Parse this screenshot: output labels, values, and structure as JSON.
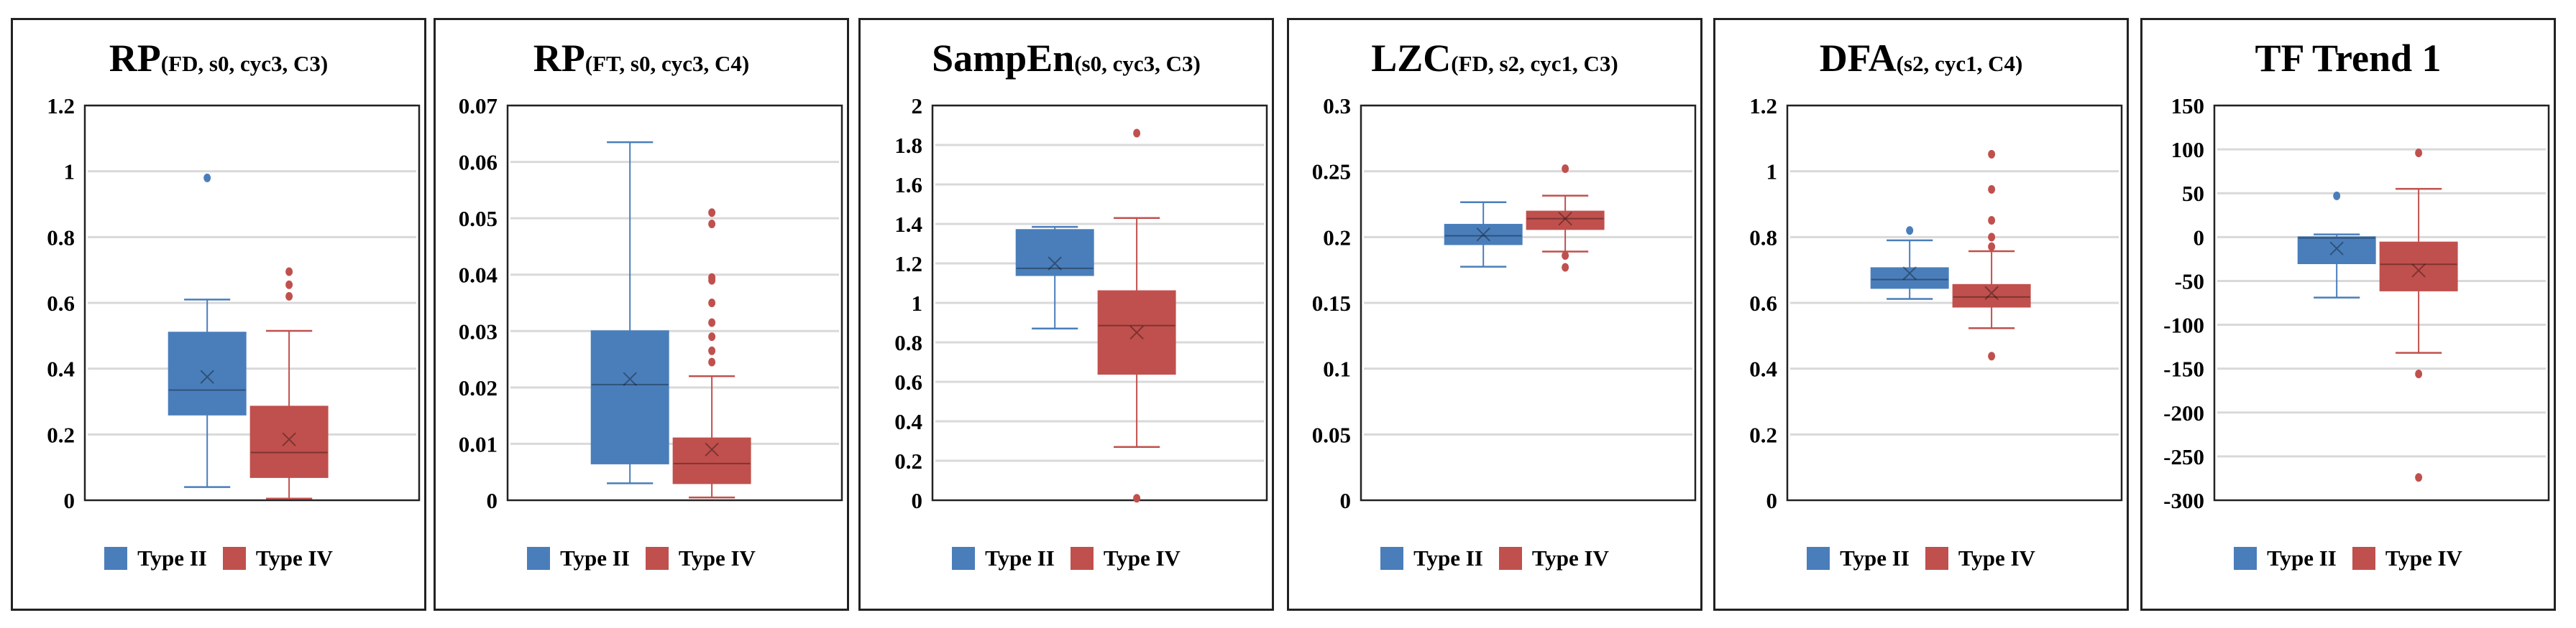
{
  "colors": {
    "type_ii": "#4a7ebb",
    "type_iv": "#c0504d",
    "grid": "#d9d9d9"
  },
  "legend": [
    "Type II",
    "Type IV"
  ],
  "chart_data": [
    {
      "type": "box",
      "title_main": "RP",
      "title_sub": "(FD, s0, cyc3, C3)",
      "ylim": [
        0,
        1.2
      ],
      "yticks": [
        "0",
        "0.2",
        "0.4",
        "0.6",
        "0.8",
        "1",
        "1.2"
      ],
      "ytick_values": [
        0,
        0.2,
        0.4,
        0.6,
        0.8,
        1,
        1.2
      ],
      "series": [
        {
          "name": "Type II",
          "min": 0.04,
          "q1": 0.26,
          "median": 0.335,
          "q3": 0.51,
          "max": 0.61,
          "mean": 0.375,
          "outliers": [
            0.98
          ]
        },
        {
          "name": "Type IV",
          "min": 0.005,
          "q1": 0.07,
          "median": 0.145,
          "q3": 0.285,
          "max": 0.515,
          "mean": 0.185,
          "outliers": [
            0.62,
            0.655,
            0.695
          ]
        }
      ]
    },
    {
      "type": "box",
      "title_main": "RP",
      "title_sub": "(FT, s0, cyc3, C4)",
      "ylim": [
        0,
        0.07
      ],
      "yticks": [
        "0",
        "0.01",
        "0.02",
        "0.03",
        "0.04",
        "0.05",
        "0.06",
        "0.07"
      ],
      "ytick_values": [
        0,
        0.01,
        0.02,
        0.03,
        0.04,
        0.05,
        0.06,
        0.07
      ],
      "series": [
        {
          "name": "Type II",
          "min": 0.003,
          "q1": 0.0065,
          "median": 0.0205,
          "q3": 0.03,
          "max": 0.0635,
          "mean": 0.0215,
          "outliers": []
        },
        {
          "name": "Type IV",
          "min": 0.0005,
          "q1": 0.003,
          "median": 0.0065,
          "q3": 0.011,
          "max": 0.022,
          "mean": 0.009,
          "outliers": [
            0.0245,
            0.0265,
            0.029,
            0.0315,
            0.035,
            0.039,
            0.0395,
            0.049,
            0.051
          ]
        }
      ]
    },
    {
      "type": "box",
      "title_main": "SampEn",
      "title_sub": "(s0, cyc3, C3)",
      "ylim": [
        0,
        2
      ],
      "yticks": [
        "0",
        "0.2",
        "0.4",
        "0.6",
        "0.8",
        "1",
        "1.2",
        "1.4",
        "1.6",
        "1.8",
        "2"
      ],
      "ytick_values": [
        0,
        0.2,
        0.4,
        0.6,
        0.8,
        1,
        1.2,
        1.4,
        1.6,
        1.8,
        2
      ],
      "series": [
        {
          "name": "Type II",
          "min": 0.87,
          "q1": 1.14,
          "median": 1.175,
          "q3": 1.37,
          "max": 1.385,
          "mean": 1.2,
          "outliers": []
        },
        {
          "name": "Type IV",
          "min": 0.27,
          "q1": 0.64,
          "median": 0.885,
          "q3": 1.06,
          "max": 1.43,
          "mean": 0.85,
          "outliers": [
            1.86,
            0.01
          ]
        }
      ]
    },
    {
      "type": "box",
      "title_main": "LZC",
      "title_sub": "(FD, s2, cyc1, C3)",
      "ylim": [
        0,
        0.3
      ],
      "yticks": [
        "0",
        "0.05",
        "0.1",
        "0.15",
        "0.2",
        "0.25",
        "0.3"
      ],
      "ytick_values": [
        0,
        0.05,
        0.1,
        0.15,
        0.2,
        0.25,
        0.3
      ],
      "series": [
        {
          "name": "Type II",
          "min": 0.1775,
          "q1": 0.1945,
          "median": 0.201,
          "q3": 0.2095,
          "max": 0.2265,
          "mean": 0.202,
          "outliers": []
        },
        {
          "name": "Type IV",
          "min": 0.189,
          "q1": 0.206,
          "median": 0.214,
          "q3": 0.2195,
          "max": 0.2315,
          "mean": 0.214,
          "outliers": [
            0.252,
            0.186,
            0.177
          ]
        }
      ]
    },
    {
      "type": "box",
      "title_main": "DFA",
      "title_sub": "(s2, cyc1, C4)",
      "ylim": [
        0,
        1.2
      ],
      "yticks": [
        "0",
        "0.2",
        "0.4",
        "0.6",
        "0.8",
        "1",
        "1.2"
      ],
      "ytick_values": [
        0,
        0.2,
        0.4,
        0.6,
        0.8,
        1,
        1.2
      ],
      "series": [
        {
          "name": "Type II",
          "min": 0.612,
          "q1": 0.645,
          "median": 0.671,
          "q3": 0.706,
          "max": 0.79,
          "mean": 0.69,
          "outliers": [
            0.82
          ]
        },
        {
          "name": "Type IV",
          "min": 0.523,
          "q1": 0.588,
          "median": 0.618,
          "q3": 0.655,
          "max": 0.757,
          "mean": 0.63,
          "outliers": [
            1.052,
            0.945,
            0.851,
            0.8,
            0.771,
            0.438
          ]
        }
      ]
    },
    {
      "type": "box",
      "title_main": "TF Trend 1",
      "title_sub": "",
      "ylim": [
        -300,
        150
      ],
      "yticks": [
        "-300",
        "-250",
        "-200",
        "-150",
        "-100",
        "-50",
        "0",
        "50",
        "100",
        "150"
      ],
      "ytick_values": [
        -300,
        -250,
        -200,
        -150,
        -100,
        -50,
        0,
        50,
        100,
        150
      ],
      "series": [
        {
          "name": "Type II",
          "min": -69,
          "q1": -30,
          "median": -1,
          "q3": 0,
          "max": 3,
          "mean": -13,
          "outliers": [
            47
          ]
        },
        {
          "name": "Type IV",
          "min": -132,
          "q1": -61,
          "median": -31,
          "q3": -6,
          "max": 55,
          "mean": -38,
          "outliers": [
            96,
            -156,
            -274
          ]
        }
      ]
    }
  ]
}
